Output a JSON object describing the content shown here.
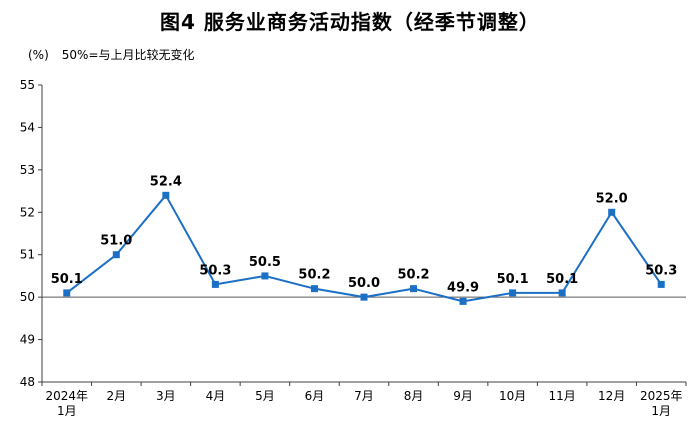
{
  "page": {
    "title": "图4 服务业商务活动指数（经季节调整）",
    "unit_label": "(%)",
    "note": "50%=与上月比较无变化"
  },
  "chart_data": {
    "type": "line",
    "title": "图4 服务业商务活动指数（经季节调整）",
    "ylabel": "(%)",
    "note": "50%=与上月比较无变化",
    "categories": [
      "2024年\n1月",
      "2月",
      "3月",
      "4月",
      "5月",
      "6月",
      "7月",
      "8月",
      "9月",
      "10月",
      "11月",
      "12月",
      "2025年\n1月"
    ],
    "values": [
      50.1,
      51.0,
      52.4,
      50.3,
      50.5,
      50.2,
      50.0,
      50.2,
      49.9,
      50.1,
      50.1,
      52.0,
      50.3
    ],
    "data_labels": [
      "50.1",
      "51.0",
      "52.4",
      "50.3",
      "50.5",
      "50.2",
      "50.0",
      "50.2",
      "49.9",
      "50.1",
      "50.1",
      "52.0",
      "50.3"
    ],
    "ylim": [
      48,
      55
    ],
    "ytick_step": 1,
    "yticks": [
      48,
      49,
      50,
      51,
      52,
      53,
      54,
      55
    ],
    "reference_line": 50,
    "grid": false,
    "legend": "none",
    "marker": "square",
    "line_color": "#1b6fc4",
    "axis_color": "#404040",
    "label_color": "#000000"
  }
}
